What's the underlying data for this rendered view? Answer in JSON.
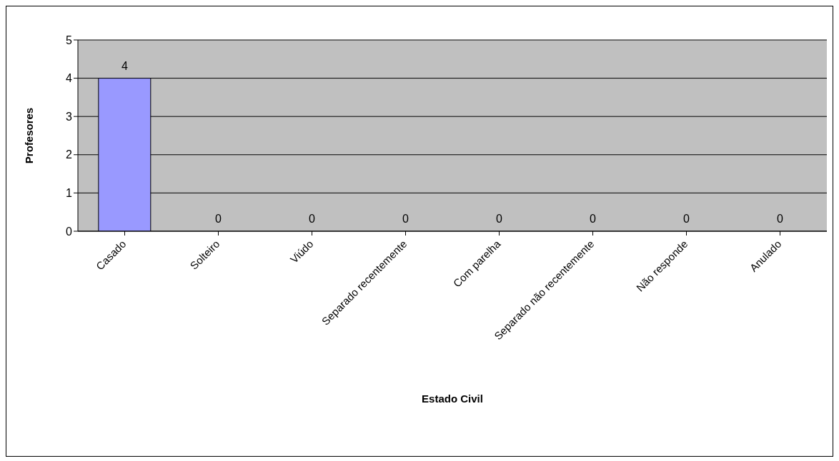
{
  "chart_data": {
    "type": "bar",
    "xlabel": "Estado Civil",
    "ylabel": "Profesores",
    "categories": [
      "Casado",
      "Solteiro",
      "Viúdo",
      "Separado recentemente",
      "Com parelha",
      "Separado não recentemente",
      "Não responde",
      "Anulado"
    ],
    "values": [
      4,
      0,
      0,
      0,
      0,
      0,
      0,
      0
    ],
    "color": "#9999ff",
    "ylim": [
      0,
      5
    ],
    "yticks": [
      0,
      1,
      2,
      3,
      4,
      5
    ],
    "grid": "y",
    "data_labels": true,
    "legend": false
  }
}
